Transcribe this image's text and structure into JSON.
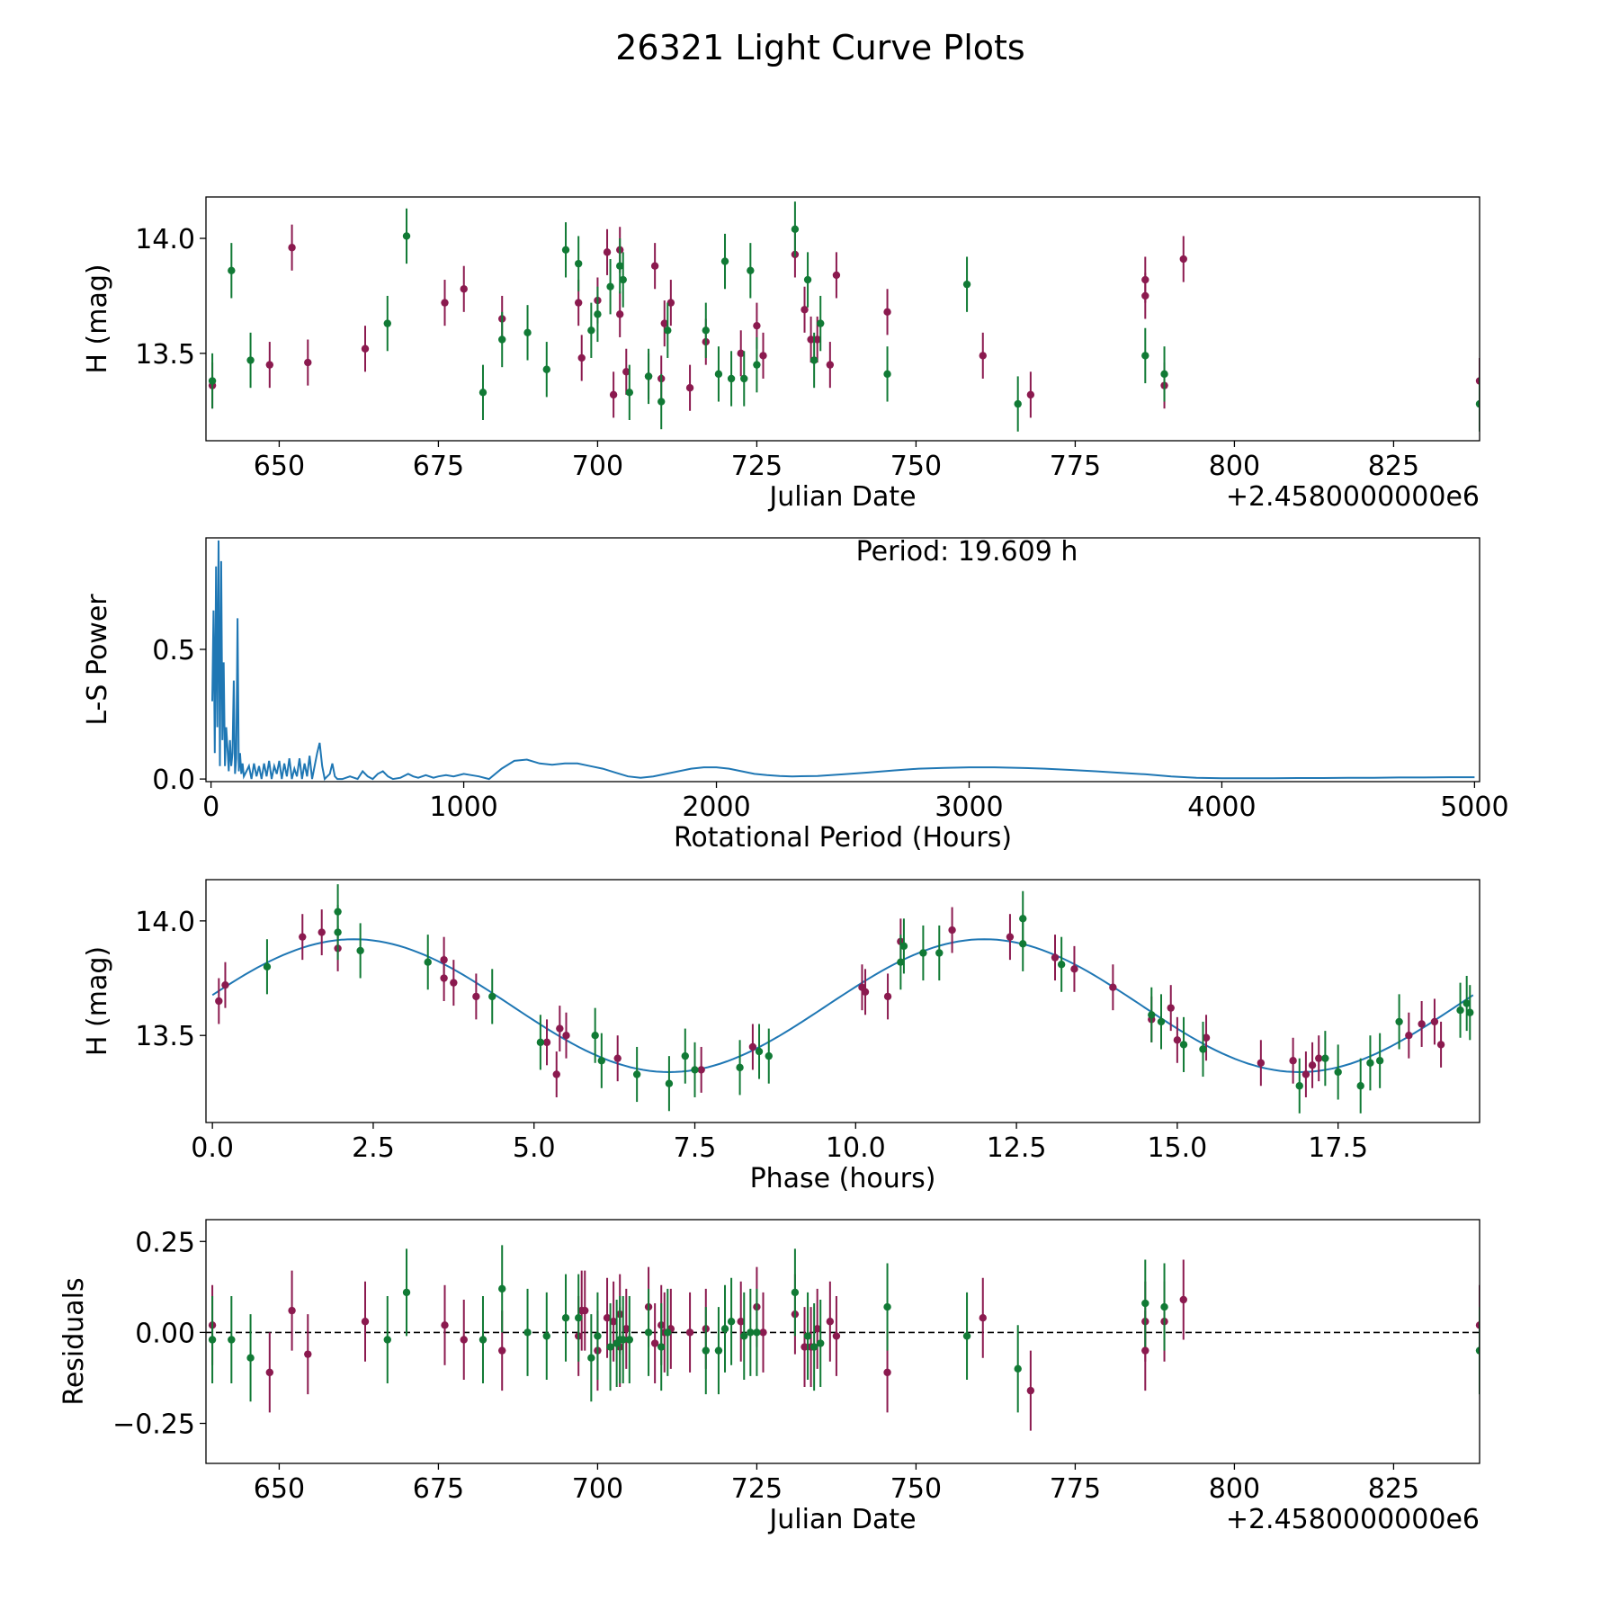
{
  "figure_title": "26321 Light Curve Plots",
  "colors": {
    "maroon": "#8b1a4f",
    "green": "#117a35",
    "curve": "#1f77b4",
    "axis": "#000000"
  },
  "chart_data": [
    {
      "id": "light-curve",
      "type": "scatter",
      "xlabel": "Julian Date",
      "ylabel": "H (mag)",
      "offset_label": "+2.4580000000e6",
      "xlim": [
        638.5,
        838.5
      ],
      "ylim": [
        13.12,
        14.18
      ],
      "xticks": [
        650,
        675,
        700,
        725,
        750,
        775,
        800,
        825
      ],
      "xtick_labels": [
        "650",
        "675",
        "700",
        "725",
        "750",
        "775",
        "800",
        "825"
      ],
      "yticks": [
        13.5,
        14.0
      ],
      "ytick_labels": [
        "13.5",
        "14.0"
      ],
      "series": [
        {
          "name": "maroon",
          "color_key": "maroon",
          "err": 0.1,
          "x": [
            639.5,
            648.5,
            652.0,
            654.5,
            663.5,
            676.0,
            679.0,
            685.0,
            697.5,
            697.0,
            700.0,
            701.5,
            702.5,
            703.5,
            704.5,
            703.5,
            708.0,
            709.0,
            710.0,
            710.5,
            711.5,
            714.5,
            717.0,
            722.5,
            725.0,
            726.0,
            731.0,
            732.5,
            733.5,
            734.5,
            736.5,
            737.5,
            745.5,
            760.5,
            768.0,
            786.0,
            786.0,
            789.0,
            792.0,
            838.5
          ],
          "y": [
            13.36,
            13.45,
            13.96,
            13.46,
            13.52,
            13.72,
            13.78,
            13.65,
            13.48,
            13.72,
            13.73,
            13.94,
            13.32,
            13.95,
            13.42,
            13.67,
            13.4,
            13.88,
            13.39,
            13.63,
            13.72,
            13.35,
            13.55,
            13.5,
            13.62,
            13.49,
            13.93,
            13.69,
            13.56,
            13.56,
            13.45,
            13.84,
            13.68,
            13.49,
            13.32,
            13.82,
            13.75,
            13.36,
            13.91,
            13.38
          ]
        },
        {
          "name": "green",
          "color_key": "green",
          "err": 0.12,
          "x": [
            639.5,
            642.5,
            645.5,
            667.0,
            670.0,
            682.0,
            685.0,
            689.0,
            692.0,
            695.0,
            697.0,
            699.0,
            700.0,
            702.0,
            703.5,
            704.0,
            705.0,
            708.0,
            710.0,
            711.0,
            717.0,
            719.0,
            720.0,
            721.0,
            723.0,
            724.0,
            725.0,
            731.0,
            733.0,
            734.0,
            735.0,
            745.5,
            758.0,
            766.0,
            786.0,
            789.0,
            838.5
          ],
          "y": [
            13.38,
            13.86,
            13.47,
            13.63,
            14.01,
            13.33,
            13.56,
            13.59,
            13.43,
            13.95,
            13.89,
            13.6,
            13.67,
            13.79,
            13.88,
            13.82,
            13.33,
            13.4,
            13.29,
            13.6,
            13.6,
            13.41,
            13.9,
            13.39,
            13.39,
            13.86,
            13.45,
            14.04,
            13.82,
            13.47,
            13.63,
            13.41,
            13.8,
            13.28,
            13.49,
            13.41,
            13.28
          ]
        }
      ]
    },
    {
      "id": "periodogram",
      "type": "line",
      "xlabel": "Rotational Period (Hours)",
      "ylabel": "L-S Power",
      "annotation": "Period: 19.609 h",
      "xlim": [
        -20,
        5020
      ],
      "ylim": [
        -0.01,
        0.93
      ],
      "xticks": [
        0,
        1000,
        2000,
        3000,
        4000,
        5000
      ],
      "xtick_labels": [
        "0",
        "1000",
        "2000",
        "3000",
        "4000",
        "5000"
      ],
      "yticks": [
        0.0,
        0.5
      ],
      "ytick_labels": [
        "0.0",
        "0.5"
      ],
      "line": {
        "x": [
          5,
          10,
          15,
          20,
          25,
          30,
          35,
          40,
          45,
          50,
          55,
          60,
          65,
          70,
          75,
          80,
          85,
          90,
          95,
          100,
          105,
          110,
          115,
          120,
          125,
          130,
          140,
          150,
          160,
          170,
          180,
          190,
          200,
          210,
          220,
          230,
          240,
          250,
          260,
          270,
          280,
          290,
          300,
          310,
          320,
          330,
          340,
          350,
          360,
          370,
          380,
          390,
          400,
          410,
          420,
          430,
          440,
          450,
          460,
          470,
          480,
          490,
          500,
          520,
          550,
          580,
          600,
          620,
          640,
          660,
          680,
          700,
          720,
          750,
          780,
          800,
          820,
          850,
          880,
          900,
          930,
          960,
          1000,
          1030,
          1060,
          1100,
          1150,
          1200,
          1250,
          1300,
          1350,
          1400,
          1450,
          1500,
          1550,
          1600,
          1650,
          1700,
          1750,
          1800,
          1850,
          1900,
          1950,
          2000,
          2050,
          2100,
          2150,
          2200,
          2250,
          2300,
          2400,
          2500,
          2600,
          2700,
          2800,
          2900,
          3000,
          3100,
          3200,
          3300,
          3400,
          3500,
          3600,
          3700,
          3800,
          3900,
          4000,
          4100,
          4200,
          4300,
          4400,
          4500,
          4600,
          4700,
          4800,
          4900,
          5000
        ],
        "y": [
          0.3,
          0.65,
          0.1,
          0.82,
          0.2,
          0.92,
          0.05,
          0.84,
          0.15,
          0.45,
          0.05,
          0.2,
          0.12,
          0.03,
          0.15,
          0.05,
          0.1,
          0.38,
          0.02,
          0.08,
          0.62,
          0.03,
          0.1,
          0.02,
          0.06,
          0.01,
          0.03,
          0.05,
          0.0,
          0.06,
          0.01,
          0.05,
          0.0,
          0.06,
          0.01,
          0.07,
          0.0,
          0.05,
          0.02,
          0.07,
          0.0,
          0.06,
          0.01,
          0.08,
          0.0,
          0.04,
          0.01,
          0.08,
          0.0,
          0.06,
          0.01,
          0.09,
          0.0,
          0.05,
          0.1,
          0.14,
          0.05,
          0.0,
          0.01,
          0.02,
          0.06,
          0.01,
          0.0,
          0.0,
          0.01,
          0.0,
          0.03,
          0.01,
          0.0,
          0.02,
          0.03,
          0.01,
          0.0,
          0.005,
          0.02,
          0.01,
          0.005,
          0.015,
          0.005,
          0.01,
          0.015,
          0.01,
          0.02,
          0.015,
          0.01,
          0.0,
          0.04,
          0.07,
          0.075,
          0.06,
          0.055,
          0.06,
          0.06,
          0.05,
          0.04,
          0.025,
          0.01,
          0.005,
          0.01,
          0.02,
          0.03,
          0.04,
          0.045,
          0.045,
          0.04,
          0.03,
          0.02,
          0.015,
          0.012,
          0.01,
          0.012,
          0.018,
          0.025,
          0.033,
          0.04,
          0.043,
          0.045,
          0.045,
          0.043,
          0.04,
          0.035,
          0.03,
          0.024,
          0.018,
          0.01,
          0.005,
          0.003,
          0.003,
          0.003,
          0.004,
          0.004,
          0.005,
          0.005,
          0.006,
          0.006,
          0.007,
          0.007
        ]
      }
    },
    {
      "id": "phase-plot",
      "type": "scatter",
      "xlabel": "Phase (hours)",
      "ylabel": "H (mag)",
      "xlim": [
        -0.1,
        19.7
      ],
      "ylim": [
        13.12,
        14.18
      ],
      "xticks": [
        0.0,
        2.5,
        5.0,
        7.5,
        10.0,
        12.5,
        15.0,
        17.5
      ],
      "xtick_labels": [
        "0.0",
        "2.5",
        "5.0",
        "7.5",
        "10.0",
        "12.5",
        "15.0",
        "17.5"
      ],
      "yticks": [
        13.5,
        14.0
      ],
      "ytick_labels": [
        "13.5",
        "14.0"
      ],
      "fit_curve": {
        "mean": 13.63,
        "amplitude": 0.29,
        "period": 9.8,
        "peak_phase": 2.2
      },
      "series": [
        {
          "name": "maroon",
          "color_key": "maroon",
          "err": 0.1,
          "x": [
            0.1,
            0.2,
            1.4,
            1.7,
            1.95,
            3.6,
            3.6,
            3.75,
            4.1,
            5.2,
            5.35,
            5.4,
            5.5,
            6.3,
            7.6,
            8.4,
            10.1,
            10.15,
            10.5,
            10.7,
            11.5,
            12.4,
            13.1,
            13.4,
            14.0,
            14.6,
            14.9,
            15.0,
            15.45,
            16.3,
            16.8,
            17.0,
            17.1,
            17.2,
            18.6,
            18.8,
            19.0,
            19.1
          ],
          "y": [
            13.65,
            13.72,
            13.93,
            13.95,
            13.88,
            13.83,
            13.75,
            13.73,
            13.67,
            13.47,
            13.33,
            13.53,
            13.5,
            13.4,
            13.35,
            13.45,
            13.71,
            13.69,
            13.67,
            13.91,
            13.96,
            13.93,
            13.84,
            13.79,
            13.71,
            13.57,
            13.62,
            13.48,
            13.49,
            13.38,
            13.39,
            13.33,
            13.37,
            13.4,
            13.5,
            13.55,
            13.56,
            13.46
          ]
        },
        {
          "name": "green",
          "color_key": "green",
          "err": 0.12,
          "x": [
            0.85,
            1.95,
            1.95,
            2.3,
            3.35,
            4.35,
            5.1,
            5.95,
            6.05,
            6.6,
            7.1,
            7.35,
            7.5,
            8.2,
            8.5,
            8.65,
            10.7,
            10.75,
            11.05,
            11.3,
            12.6,
            12.6,
            13.2,
            14.6,
            14.75,
            15.1,
            15.4,
            16.9,
            17.3,
            17.5,
            17.85,
            18.0,
            18.15,
            18.45,
            19.4,
            19.5,
            19.55
          ],
          "y": [
            13.8,
            14.04,
            13.95,
            13.87,
            13.82,
            13.67,
            13.47,
            13.5,
            13.39,
            13.33,
            13.29,
            13.41,
            13.35,
            13.36,
            13.43,
            13.41,
            13.82,
            13.89,
            13.86,
            13.86,
            13.9,
            14.01,
            13.81,
            13.59,
            13.56,
            13.46,
            13.44,
            13.28,
            13.4,
            13.34,
            13.28,
            13.38,
            13.39,
            13.56,
            13.61,
            13.64,
            13.6
          ]
        }
      ]
    },
    {
      "id": "residuals",
      "type": "scatter",
      "xlabel": "Julian Date",
      "ylabel": "Residuals",
      "offset_label": "+2.4580000000e6",
      "xlim": [
        638.5,
        838.5
      ],
      "ylim": [
        -0.36,
        0.31
      ],
      "xticks": [
        650,
        675,
        700,
        725,
        750,
        775,
        800,
        825
      ],
      "xtick_labels": [
        "650",
        "675",
        "700",
        "725",
        "750",
        "775",
        "800",
        "825"
      ],
      "yticks": [
        0.25,
        0.0,
        -0.25
      ],
      "ytick_labels": [
        "0.25",
        "0.00",
        "−0.25"
      ],
      "zero_line": 0.0,
      "series": [
        {
          "name": "maroon",
          "color_key": "maroon",
          "err": 0.11,
          "x": [
            639.5,
            648.5,
            652.0,
            654.5,
            663.5,
            676.0,
            679.0,
            685.0,
            697.0,
            697.5,
            698.0,
            700.0,
            701.5,
            702.5,
            703.5,
            703.5,
            704.5,
            708.0,
            709.0,
            710.0,
            710.5,
            711.5,
            714.5,
            717.0,
            722.5,
            725.0,
            726.0,
            731.0,
            732.5,
            733.5,
            734.5,
            736.5,
            737.5,
            745.5,
            760.5,
            768.0,
            786.0,
            786.0,
            789.0,
            792.0,
            838.5
          ],
          "y": [
            0.02,
            -0.11,
            0.06,
            -0.06,
            0.03,
            0.02,
            -0.02,
            -0.05,
            -0.01,
            0.06,
            0.06,
            -0.05,
            0.04,
            0.03,
            0.05,
            -0.04,
            0.01,
            0.07,
            -0.03,
            0.02,
            0.0,
            0.01,
            0.0,
            0.01,
            0.03,
            0.07,
            0.0,
            0.05,
            -0.04,
            -0.04,
            0.01,
            0.03,
            -0.01,
            -0.11,
            0.04,
            -0.16,
            0.03,
            -0.05,
            0.03,
            0.09,
            0.02
          ]
        },
        {
          "name": "green",
          "color_key": "green",
          "err": 0.12,
          "x": [
            639.5,
            642.5,
            645.5,
            667.0,
            670.0,
            682.0,
            685.0,
            689.0,
            692.0,
            695.0,
            697.0,
            699.0,
            700.0,
            702.0,
            703.0,
            703.5,
            704.0,
            705.0,
            708.0,
            710.0,
            711.0,
            717.0,
            719.0,
            720.0,
            721.0,
            723.0,
            724.0,
            725.0,
            731.0,
            733.0,
            734.0,
            735.0,
            745.5,
            758.0,
            766.0,
            786.0,
            789.0,
            838.5
          ],
          "y": [
            -0.02,
            -0.02,
            -0.07,
            -0.02,
            0.11,
            -0.02,
            0.12,
            0.0,
            -0.01,
            0.04,
            0.04,
            -0.07,
            -0.01,
            -0.04,
            -0.03,
            -0.02,
            -0.02,
            -0.02,
            0.0,
            -0.04,
            0.0,
            -0.05,
            -0.05,
            0.01,
            0.03,
            -0.01,
            0.0,
            0.0,
            0.11,
            -0.01,
            -0.04,
            -0.03,
            0.07,
            -0.01,
            -0.1,
            0.08,
            0.07,
            -0.05
          ]
        }
      ]
    }
  ]
}
